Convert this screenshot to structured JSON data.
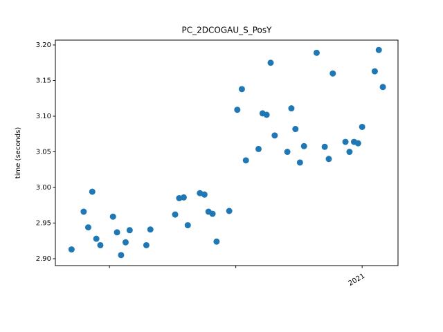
{
  "chart_data": {
    "type": "scatter",
    "title": "PC_2DCOGAU_S_PosY",
    "ylabel": "time (seconds)",
    "color": "#1f77b4",
    "x": [
      2020.425,
      2020.449,
      2020.458,
      2020.466,
      2020.474,
      2020.482,
      2020.507,
      2020.515,
      2020.523,
      2020.532,
      2020.54,
      2020.573,
      2020.581,
      2020.63,
      2020.638,
      2020.647,
      2020.655,
      2020.679,
      2020.688,
      2020.696,
      2020.704,
      2020.712,
      2020.737,
      2020.753,
      2020.762,
      2020.77,
      2020.795,
      2020.803,
      2020.811,
      2020.819,
      2020.827,
      2020.852,
      2020.86,
      2020.868,
      2020.877,
      2020.885,
      2020.91,
      2020.926,
      2020.934,
      2020.942,
      2020.967,
      2020.975,
      2020.984,
      2020.992,
      2021.0,
      2021.025,
      2021.033,
      2021.041
    ],
    "values": [
      2.913,
      2.966,
      2.944,
      2.994,
      2.928,
      2.919,
      2.959,
      2.937,
      2.905,
      2.923,
      2.94,
      2.919,
      2.941,
      2.962,
      2.985,
      2.986,
      2.947,
      2.992,
      2.99,
      2.966,
      2.963,
      2.924,
      2.967,
      3.109,
      3.138,
      3.038,
      3.054,
      3.104,
      3.102,
      3.175,
      3.073,
      3.05,
      3.111,
      3.082,
      3.035,
      3.058,
      3.189,
      3.057,
      3.04,
      3.16,
      3.064,
      3.05,
      3.064,
      3.062,
      3.085,
      3.163,
      3.193,
      3.141
    ],
    "xlim": [
      2020.393,
      2021.071
    ],
    "xticks": [
      {
        "value": 2020.5,
        "label": null
      },
      {
        "value": 2020.75,
        "label": null
      },
      2021
    ],
    "ylim": [
      2.8903,
      3.2068
    ],
    "yticks": [
      {
        "value": 2.9,
        "label": "2.90"
      },
      2.95,
      {
        "value": 3.0,
        "label": "3.00"
      },
      3.05,
      {
        "value": 3.1,
        "label": "3.10"
      },
      3.15,
      {
        "value": 3.2,
        "label": "3.20"
      }
    ]
  }
}
